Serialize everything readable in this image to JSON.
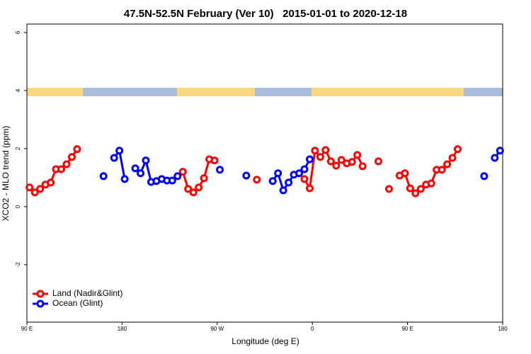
{
  "chart_data": {
    "type": "line",
    "title": "47.5N-52.5N February (Ver 10)   2015-01-01 to 2020-12-18",
    "x_label": "Longitude (deg E)",
    "y_label": "XCO2 - MLO trend (ppm)",
    "xlim": [
      90,
      540
    ],
    "xticks": [
      {
        "value": 90,
        "label": "90 E"
      },
      180,
      {
        "value": 270,
        "label": "90 W"
      },
      {
        "value": 360,
        "label": "0"
      },
      {
        "value": 450,
        "label": "90 E"
      },
      {
        "value": 540,
        "label": "180"
      }
    ],
    "ylim": [
      -3.98,
      6.29
    ],
    "yticks": [
      -2,
      0,
      2,
      4,
      6
    ],
    "legend": "bottom-left",
    "x": [
      92.5,
      97.5,
      102.5,
      107.5,
      112.5,
      117.5,
      122.5,
      127.5,
      132.5,
      137.5,
      142.5,
      147.5,
      152.5,
      157.5,
      162.5,
      167.5,
      172.5,
      177.5,
      182.5,
      187.5,
      192.5,
      197.5,
      202.5,
      207.5,
      212.5,
      217.5,
      222.5,
      227.5,
      232.5,
      237.5,
      242.5,
      247.5,
      252.5,
      257.5,
      262.5,
      267.5,
      272.5,
      277.5,
      282.5,
      287.5,
      292.5,
      297.5,
      302.5,
      307.5,
      312.5,
      317.5,
      322.5,
      327.5,
      332.5,
      337.5,
      342.5,
      347.5,
      352.5,
      357.5,
      362.5,
      367.5,
      372.5,
      377.5,
      382.5,
      387.5,
      392.5,
      397.5,
      402.5,
      407.5,
      412.5,
      417.5,
      422.5,
      427.5,
      432.5,
      437.5,
      442.5,
      447.5,
      452.5,
      457.5,
      462.5,
      467.5,
      472.5,
      477.5,
      482.5,
      487.5,
      492.5,
      497.5,
      502.5,
      507.5,
      512.5,
      517.5,
      522.5,
      527.5,
      532.5,
      537.5
    ],
    "series": [
      {
        "name": "Land (Nadir&Glint)",
        "color": "#ff0000",
        "values": [
          0.66,
          0.49,
          0.61,
          0.76,
          0.83,
          1.29,
          1.29,
          1.46,
          1.71,
          1.98,
          null,
          null,
          null,
          null,
          null,
          null,
          null,
          null,
          null,
          null,
          null,
          null,
          null,
          null,
          null,
          null,
          null,
          null,
          null,
          1.2,
          0.61,
          0.49,
          0.66,
          0.98,
          1.63,
          1.59,
          null,
          null,
          null,
          null,
          null,
          null,
          null,
          0.93,
          null,
          null,
          null,
          null,
          null,
          null,
          null,
          null,
          0.95,
          0.63,
          1.93,
          1.71,
          1.95,
          1.56,
          1.41,
          1.61,
          1.49,
          1.54,
          1.78,
          1.39,
          null,
          null,
          1.56,
          null,
          0.61,
          null,
          1.07,
          1.15,
          0.63,
          0.46,
          0.61,
          0.76,
          0.8,
          1.27,
          1.27,
          1.46,
          1.68,
          1.98,
          null,
          null,
          null,
          null,
          null,
          null,
          null,
          null
        ]
      },
      {
        "name": "Ocean (Glint)",
        "color": "#0000ff",
        "values": [
          null,
          null,
          null,
          null,
          null,
          null,
          null,
          null,
          null,
          null,
          null,
          null,
          null,
          null,
          1.05,
          null,
          1.68,
          1.93,
          0.95,
          null,
          1.32,
          1.15,
          1.59,
          0.85,
          0.88,
          0.95,
          0.9,
          0.9,
          1.05,
          null,
          null,
          null,
          null,
          null,
          null,
          null,
          1.27,
          null,
          null,
          null,
          null,
          1.07,
          null,
          null,
          null,
          null,
          0.88,
          1.15,
          0.56,
          0.83,
          1.1,
          1.15,
          1.29,
          1.63,
          null,
          null,
          null,
          null,
          null,
          null,
          null,
          null,
          null,
          null,
          null,
          null,
          null,
          null,
          null,
          null,
          null,
          null,
          null,
          null,
          null,
          null,
          null,
          null,
          null,
          null,
          null,
          null,
          null,
          null,
          null,
          null,
          1.05,
          null,
          1.68,
          1.93
        ]
      }
    ]
  }
}
